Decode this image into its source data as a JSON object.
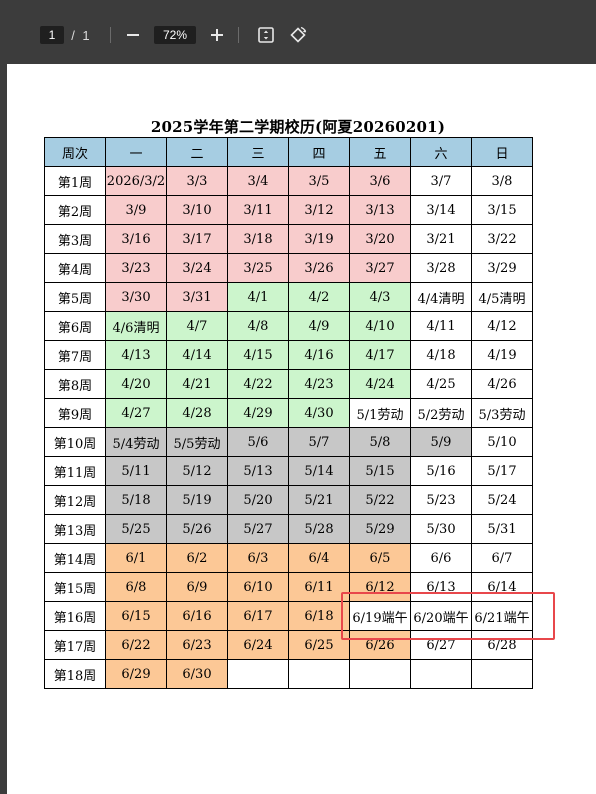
{
  "toolbar": {
    "current_page": "1",
    "page_separator": "/",
    "total_pages": "1",
    "zoom_level": "72%"
  },
  "document": {
    "title": "2025学年第二学期校历(阿夏20260201)"
  },
  "calendar": {
    "headers": [
      "周次",
      "一",
      "二",
      "三",
      "四",
      "五",
      "六",
      "日"
    ],
    "rows": [
      {
        "week": "第1周",
        "days": [
          "2026/3/2",
          "3/3",
          "3/4",
          "3/5",
          "3/6",
          "3/7",
          "3/8"
        ]
      },
      {
        "week": "第2周",
        "days": [
          "3/9",
          "3/10",
          "3/11",
          "3/12",
          "3/13",
          "3/14",
          "3/15"
        ]
      },
      {
        "week": "第3周",
        "days": [
          "3/16",
          "3/17",
          "3/18",
          "3/19",
          "3/20",
          "3/21",
          "3/22"
        ]
      },
      {
        "week": "第4周",
        "days": [
          "3/23",
          "3/24",
          "3/25",
          "3/26",
          "3/27",
          "3/28",
          "3/29"
        ]
      },
      {
        "week": "第5周",
        "days": [
          "3/30",
          "3/31",
          "4/1",
          "4/2",
          "4/3",
          "4/4清明",
          "4/5清明"
        ]
      },
      {
        "week": "第6周",
        "days": [
          "4/6清明",
          "4/7",
          "4/8",
          "4/9",
          "4/10",
          "4/11",
          "4/12"
        ]
      },
      {
        "week": "第7周",
        "days": [
          "4/13",
          "4/14",
          "4/15",
          "4/16",
          "4/17",
          "4/18",
          "4/19"
        ]
      },
      {
        "week": "第8周",
        "days": [
          "4/20",
          "4/21",
          "4/22",
          "4/23",
          "4/24",
          "4/25",
          "4/26"
        ]
      },
      {
        "week": "第9周",
        "days": [
          "4/27",
          "4/28",
          "4/29",
          "4/30",
          "5/1劳动",
          "5/2劳动",
          "5/3劳动"
        ]
      },
      {
        "week": "第10周",
        "days": [
          "5/4劳动",
          "5/5劳动",
          "5/6",
          "5/7",
          "5/8",
          "5/9",
          "5/10"
        ]
      },
      {
        "week": "第11周",
        "days": [
          "5/11",
          "5/12",
          "5/13",
          "5/14",
          "5/15",
          "5/16",
          "5/17"
        ]
      },
      {
        "week": "第12周",
        "days": [
          "5/18",
          "5/19",
          "5/20",
          "5/21",
          "5/22",
          "5/23",
          "5/24"
        ]
      },
      {
        "week": "第13周",
        "days": [
          "5/25",
          "5/26",
          "5/27",
          "5/28",
          "5/29",
          "5/30",
          "5/31"
        ]
      },
      {
        "week": "第14周",
        "days": [
          "6/1",
          "6/2",
          "6/3",
          "6/4",
          "6/5",
          "6/6",
          "6/7"
        ]
      },
      {
        "week": "第15周",
        "days": [
          "6/8",
          "6/9",
          "6/10",
          "6/11",
          "6/12",
          "6/13",
          "6/14"
        ]
      },
      {
        "week": "第16周",
        "days": [
          "6/15",
          "6/16",
          "6/17",
          "6/18",
          "6/19端午",
          "6/20端午",
          "6/21端午"
        ]
      },
      {
        "week": "第17周",
        "days": [
          "6/22",
          "6/23",
          "6/24",
          "6/25",
          "6/26",
          "6/27",
          "6/28"
        ]
      },
      {
        "week": "第18周",
        "days": [
          "6/29",
          "6/30",
          "",
          "",
          "",
          "",
          ""
        ]
      }
    ]
  },
  "colors": {
    "header": "#a6cde2",
    "march": "#f8cccc",
    "april": "#ccf5cc",
    "may": "#c7c7c7",
    "june": "#fcc896",
    "weekend": "#ffffff",
    "highlight_border": "#e8474b"
  }
}
